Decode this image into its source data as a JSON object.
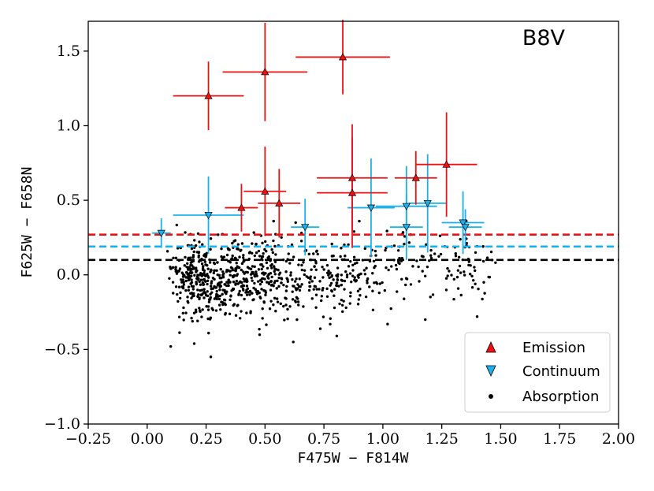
{
  "chart_data": {
    "type": "scatter",
    "annotation": "B8V",
    "xlabel": "F475W − F814W",
    "ylabel": "F625W − F658N",
    "xlim": [
      -0.25,
      2.0
    ],
    "ylim": [
      -1.0,
      1.7
    ],
    "xticks": [
      "−0.25",
      "0.00",
      "0.25",
      "0.50",
      "0.75",
      "1.00",
      "1.25",
      "1.50",
      "1.75",
      "2.00"
    ],
    "xtick_values": [
      -0.25,
      0.0,
      0.25,
      0.5,
      0.75,
      1.0,
      1.25,
      1.5,
      1.75,
      2.0
    ],
    "yticks": [
      "−1.0",
      "−0.5",
      "0.0",
      "0.5",
      "1.0",
      "1.5"
    ],
    "ytick_values": [
      -1.0,
      -0.5,
      0.0,
      0.5,
      1.0,
      1.5
    ],
    "grid": false,
    "legend_position": "lower-right",
    "legend": [
      {
        "label": "Emission",
        "marker": "triangle-up",
        "color": "#ee1111"
      },
      {
        "label": "Continuum",
        "marker": "triangle-down",
        "color": "#1ab0ee"
      },
      {
        "label": "Absorption",
        "marker": "dot",
        "color": "#000000"
      }
    ],
    "threshold_lines": [
      {
        "y": 0.27,
        "color": "#ee1111",
        "style": "dashed"
      },
      {
        "y": 0.19,
        "color": "#1ab0ee",
        "style": "dashed"
      },
      {
        "y": 0.1,
        "color": "#000000",
        "style": "dashed"
      }
    ],
    "series": [
      {
        "name": "Emission",
        "color": "#ee1111",
        "points": [
          {
            "x": 0.26,
            "y": 1.2,
            "xerr": 0.15,
            "yerr": 0.23
          },
          {
            "x": 0.5,
            "y": 1.36,
            "xerr": 0.18,
            "yerr": 0.33
          },
          {
            "x": 0.83,
            "y": 1.46,
            "xerr": 0.2,
            "yerr": 0.25
          },
          {
            "x": 0.4,
            "y": 0.45,
            "xerr": 0.07,
            "yerr": 0.16
          },
          {
            "x": 0.5,
            "y": 0.56,
            "xerr": 0.09,
            "yerr": 0.3
          },
          {
            "x": 0.56,
            "y": 0.48,
            "xerr": 0.09,
            "yerr": 0.23
          },
          {
            "x": 0.87,
            "y": 0.65,
            "xerr": 0.15,
            "yerr": 0.36
          },
          {
            "x": 0.87,
            "y": 0.55,
            "xerr": 0.15,
            "yerr": 0.37
          },
          {
            "x": 1.14,
            "y": 0.65,
            "xerr": 0.09,
            "yerr": 0.18
          },
          {
            "x": 1.27,
            "y": 0.74,
            "xerr": 0.13,
            "yerr": 0.35
          }
        ]
      },
      {
        "name": "Continuum",
        "color": "#1ab0ee",
        "points": [
          {
            "x": 0.06,
            "y": 0.28,
            "xerr": 0.04,
            "yerr": 0.1
          },
          {
            "x": 0.26,
            "y": 0.4,
            "xerr": 0.15,
            "yerr": 0.26
          },
          {
            "x": 0.67,
            "y": 0.32,
            "xerr": 0.06,
            "yerr": 0.19
          },
          {
            "x": 0.95,
            "y": 0.45,
            "xerr": 0.1,
            "yerr": 0.33
          },
          {
            "x": 1.1,
            "y": 0.46,
            "xerr": 0.13,
            "yerr": 0.27
          },
          {
            "x": 1.1,
            "y": 0.32,
            "xerr": 0.07,
            "yerr": 0.22
          },
          {
            "x": 1.19,
            "y": 0.48,
            "xerr": 0.08,
            "yerr": 0.33
          },
          {
            "x": 1.34,
            "y": 0.35,
            "xerr": 0.09,
            "yerr": 0.21
          },
          {
            "x": 1.35,
            "y": 0.32,
            "xerr": 0.07,
            "yerr": 0.12
          }
        ]
      },
      {
        "name": "Absorption",
        "color": "#000000",
        "point_count": 900,
        "distribution": {
          "x_range": [
            0.02,
            1.48
          ],
          "y_core": [
            -0.35,
            0.3
          ],
          "y_range": [
            -0.53,
            0.36
          ]
        }
      }
    ]
  }
}
